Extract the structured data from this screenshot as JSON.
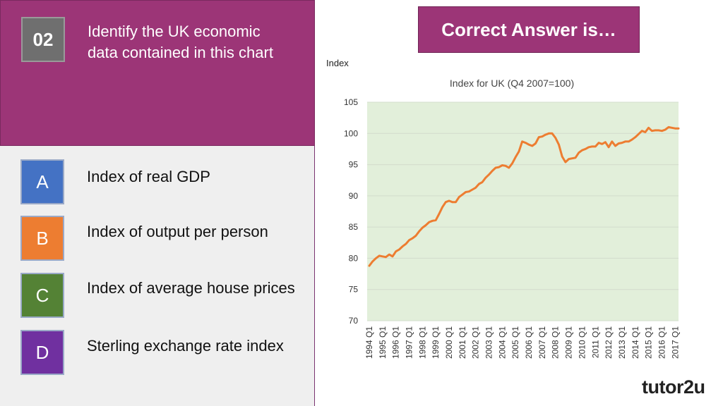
{
  "question": {
    "number": "02",
    "text": "Identify the UK economic data contained in this chart"
  },
  "options": [
    {
      "letter": "A",
      "text": "Index of real GDP",
      "color": "#4472c4"
    },
    {
      "letter": "B",
      "text": "Index of output per person",
      "color": "#ed7d31"
    },
    {
      "letter": "C",
      "text": "Index of average house prices",
      "color": "#548235"
    },
    {
      "letter": "D",
      "text": "Sterling exchange rate index",
      "color": "#7030a0"
    }
  ],
  "answer_button": {
    "label": "Correct Answer is…"
  },
  "logo": {
    "text": "tutor2u"
  },
  "colors": {
    "question_band": "#9c3577",
    "plot_background": "#e2efda",
    "line": "#ed7d31"
  },
  "chart_data": {
    "type": "line",
    "ylabel": "Index",
    "title": "Index for UK (Q4 2007=100)",
    "ylim": [
      70,
      105
    ],
    "yticks": [
      70,
      75,
      80,
      85,
      90,
      95,
      100,
      105
    ],
    "grid": true,
    "legend": "none",
    "tick_labels": [
      "1994 Q1",
      "1995 Q1",
      "1996 Q1",
      "1997 Q1",
      "1998 Q1",
      "1999 Q1",
      "2000 Q1",
      "2001 Q1",
      "2002 Q1",
      "2003 Q1",
      "2004 Q1",
      "2005 Q1",
      "2006 Q1",
      "2007 Q1",
      "2008 Q1",
      "2009 Q1",
      "2010 Q1",
      "2011 Q1",
      "2012 Q1",
      "2013 Q1",
      "2014 Q1",
      "2015 Q1",
      "2016 Q1",
      "2017 Q1"
    ],
    "series": [
      {
        "x": [
          "1994 Q1",
          "1994 Q2",
          "1994 Q3",
          "1994 Q4",
          "1995 Q1",
          "1995 Q2",
          "1995 Q3",
          "1995 Q4",
          "1996 Q1",
          "1996 Q2",
          "1996 Q3",
          "1996 Q4",
          "1997 Q1",
          "1997 Q2",
          "1997 Q3",
          "1997 Q4",
          "1998 Q1",
          "1998 Q2",
          "1998 Q3",
          "1998 Q4",
          "1999 Q1",
          "1999 Q2",
          "1999 Q3",
          "1999 Q4",
          "2000 Q1",
          "2000 Q2",
          "2000 Q3",
          "2000 Q4",
          "2001 Q1",
          "2001 Q2",
          "2001 Q3",
          "2001 Q4",
          "2002 Q1",
          "2002 Q2",
          "2002 Q3",
          "2002 Q4",
          "2003 Q1",
          "2003 Q2",
          "2003 Q3",
          "2003 Q4",
          "2004 Q1",
          "2004 Q2",
          "2004 Q3",
          "2004 Q4",
          "2005 Q1",
          "2005 Q2",
          "2005 Q3",
          "2005 Q4",
          "2006 Q1",
          "2006 Q2",
          "2006 Q3",
          "2006 Q4",
          "2007 Q1",
          "2007 Q2",
          "2007 Q3",
          "2007 Q4",
          "2008 Q1",
          "2008 Q2",
          "2008 Q3",
          "2008 Q4",
          "2009 Q1",
          "2009 Q2",
          "2009 Q3",
          "2009 Q4",
          "2010 Q1",
          "2010 Q2",
          "2010 Q3",
          "2010 Q4",
          "2011 Q1",
          "2011 Q2",
          "2011 Q3",
          "2011 Q4",
          "2012 Q1",
          "2012 Q2",
          "2012 Q3",
          "2012 Q4",
          "2013 Q1",
          "2013 Q2",
          "2013 Q3",
          "2013 Q4",
          "2014 Q1",
          "2014 Q2",
          "2014 Q3",
          "2014 Q4",
          "2015 Q1",
          "2015 Q2",
          "2015 Q3",
          "2015 Q4",
          "2016 Q1",
          "2016 Q2",
          "2016 Q3",
          "2016 Q4",
          "2017 Q1",
          "2017 Q2"
        ],
        "values": [
          78.8,
          79.5,
          80.0,
          80.4,
          80.3,
          80.2,
          80.6,
          80.3,
          81.1,
          81.4,
          81.9,
          82.3,
          82.9,
          83.2,
          83.6,
          84.3,
          84.9,
          85.3,
          85.8,
          86.0,
          86.1,
          87.1,
          88.2,
          89.0,
          89.2,
          89.0,
          89.0,
          89.8,
          90.2,
          90.6,
          90.7,
          91.0,
          91.3,
          91.9,
          92.2,
          92.9,
          93.4,
          94.0,
          94.5,
          94.6,
          94.9,
          94.8,
          94.5,
          95.2,
          96.2,
          97.1,
          98.7,
          98.5,
          98.2,
          98.0,
          98.4,
          99.4,
          99.5,
          99.8,
          100.0,
          100.0,
          99.3,
          98.2,
          96.3,
          95.4,
          95.9,
          96.0,
          96.1,
          96.9,
          97.3,
          97.5,
          97.8,
          97.9,
          97.9,
          98.5,
          98.3,
          98.6,
          97.8,
          98.7,
          98.0,
          98.4,
          98.5,
          98.7,
          98.7,
          99.0,
          99.4,
          99.9,
          100.4,
          100.2,
          100.9,
          100.4,
          100.5,
          100.5,
          100.4,
          100.6,
          101.0,
          100.9,
          100.8,
          100.8
        ]
      }
    ]
  }
}
